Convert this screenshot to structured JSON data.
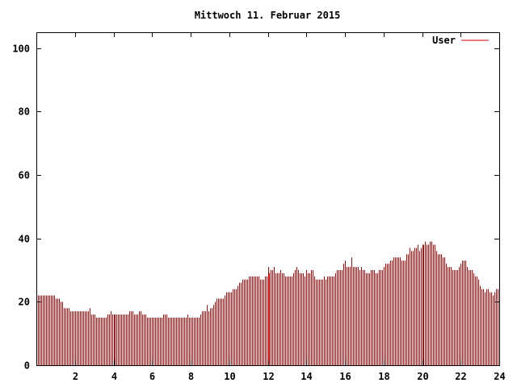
{
  "chart_data": {
    "type": "bar",
    "title": "Mittwoch 11. Februar 2015",
    "xlabel": "",
    "ylabel": "",
    "xlim": [
      0,
      24
    ],
    "ylim": [
      0,
      105
    ],
    "x_ticks": [
      "2",
      "4",
      "6",
      "8",
      "10",
      "12",
      "14",
      "16",
      "18",
      "20",
      "22",
      "24"
    ],
    "y_ticks": [
      "0",
      "20",
      "40",
      "60",
      "80",
      "100"
    ],
    "grid": false,
    "legend_position": "top-right",
    "series": [
      {
        "name": "User",
        "color": "#cc0000",
        "sample_interval_min": 5,
        "values": [
          22,
          22,
          22,
          22,
          22,
          22,
          22,
          22,
          22,
          22,
          22,
          22,
          21,
          21,
          21,
          20,
          20,
          18,
          18,
          18,
          18,
          17,
          17,
          17,
          17,
          17,
          17,
          17,
          17,
          17,
          17,
          17,
          17,
          18,
          16,
          16,
          16,
          15,
          15,
          15,
          15,
          15,
          15,
          15,
          16,
          16,
          17,
          16,
          16,
          16,
          16,
          16,
          16,
          16,
          16,
          16,
          16,
          16,
          17,
          17,
          17,
          16,
          16,
          16,
          17,
          17,
          16,
          16,
          16,
          15,
          15,
          15,
          15,
          15,
          15,
          15,
          15,
          15,
          15,
          16,
          16,
          16,
          15,
          15,
          15,
          15,
          15,
          15,
          15,
          15,
          15,
          15,
          15,
          15,
          16,
          15,
          15,
          15,
          15,
          15,
          15,
          15,
          16,
          17,
          17,
          17,
          19,
          17,
          18,
          18,
          19,
          20,
          21,
          21,
          21,
          21,
          21,
          22,
          23,
          23,
          23,
          23,
          24,
          24,
          24,
          25,
          26,
          26,
          27,
          27,
          27,
          27,
          28,
          28,
          28,
          28,
          28,
          28,
          28,
          27,
          27,
          27,
          28,
          28,
          31,
          29,
          30,
          30,
          31,
          29,
          29,
          29,
          30,
          29,
          29,
          28,
          28,
          28,
          28,
          28,
          29,
          30,
          31,
          30,
          29,
          29,
          29,
          28,
          30,
          29,
          29,
          30,
          30,
          28,
          27,
          27,
          27,
          27,
          27,
          28,
          27,
          28,
          28,
          28,
          28,
          28,
          29,
          30,
          30,
          30,
          30,
          32,
          33,
          31,
          31,
          31,
          34,
          31,
          31,
          31,
          31,
          30,
          31,
          30,
          30,
          29,
          29,
          29,
          30,
          30,
          30,
          29,
          29,
          30,
          30,
          30,
          31,
          32,
          32,
          32,
          33,
          33,
          34,
          34,
          34,
          34,
          34,
          33,
          33,
          33,
          35,
          35,
          37,
          36,
          36,
          37,
          37,
          38,
          36,
          37,
          38,
          38,
          39,
          38,
          38,
          39,
          39,
          38,
          38,
          36,
          35,
          35,
          35,
          34,
          34,
          32,
          31,
          31,
          31,
          30,
          30,
          30,
          30,
          31,
          32,
          33,
          33,
          33,
          31,
          30,
          30,
          30,
          29,
          28,
          28,
          27,
          25,
          24,
          24,
          23,
          24,
          24,
          23,
          23,
          22,
          23,
          24,
          24
        ]
      }
    ]
  }
}
